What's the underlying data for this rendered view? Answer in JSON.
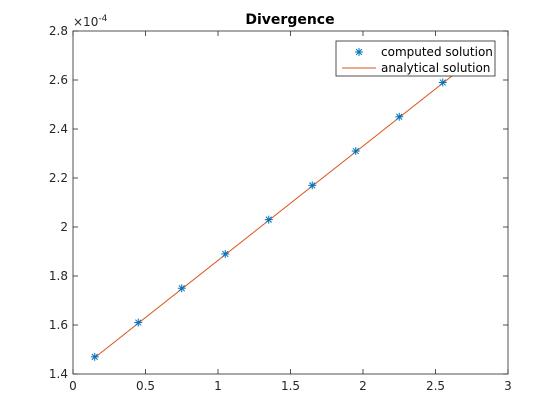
{
  "chart_data": {
    "type": "line",
    "title": "Divergence",
    "xlabel": "",
    "ylabel": "",
    "xlim": [
      0,
      3
    ],
    "ylim": [
      1.4,
      2.8
    ],
    "x_ticks": [
      0,
      0.5,
      1,
      1.5,
      2,
      2.5,
      3
    ],
    "x_tick_labels": [
      "0",
      "0.5",
      "1",
      "1.5",
      "2",
      "2.5",
      "3"
    ],
    "y_ticks": [
      1.4,
      1.6,
      1.8,
      2.0,
      2.2,
      2.4,
      2.6,
      2.8
    ],
    "y_tick_labels": [
      "1.4",
      "1.6",
      "1.8",
      "2",
      "2.2",
      "2.4",
      "2.6",
      "2.8"
    ],
    "y_exponent": {
      "base": "×10",
      "power": "-4"
    },
    "grid": false,
    "legend_position": "top-right",
    "series": [
      {
        "name": "computed solution",
        "style": "markers",
        "marker": "asterisk",
        "color": "#0072BD",
        "x": [
          0.15,
          0.45,
          0.75,
          1.05,
          1.35,
          1.65,
          1.95,
          2.25,
          2.55
        ],
        "y": [
          1.47,
          1.61,
          1.75,
          1.89,
          2.03,
          2.17,
          2.31,
          2.45,
          2.59
        ]
      },
      {
        "name": "analytical solution",
        "style": "line",
        "color": "#D95319",
        "x": [
          0.15,
          2.85
        ],
        "y": [
          1.467,
          2.727
        ]
      }
    ]
  }
}
